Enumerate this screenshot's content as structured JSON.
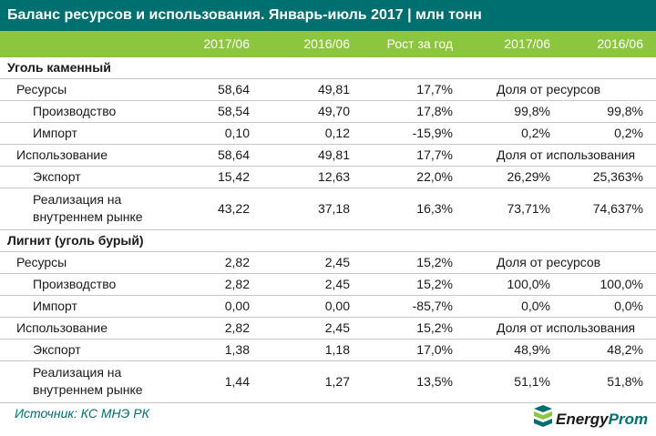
{
  "title": "Баланс ресурсов и использования. Январь-июль 2017 | млн тонн",
  "headers": [
    "2017/06",
    "2016/06",
    "Рост за год",
    "2017/06",
    "2016/06"
  ],
  "rows": [
    {
      "type": "section",
      "label": "Уголь каменный"
    },
    {
      "type": "l1",
      "label": "Ресурсы",
      "v1": "58,64",
      "v2": "49,81",
      "v3": "17,7%",
      "note": "Доля от ресурсов"
    },
    {
      "type": "l2",
      "label": "Производство",
      "v1": "58,54",
      "v2": "49,70",
      "v3": "17,8%",
      "v4": "99,8%",
      "v5": "99,8%"
    },
    {
      "type": "l2",
      "label": "Импорт",
      "v1": "0,10",
      "v2": "0,12",
      "v3": "-15,9%",
      "v4": "0,2%",
      "v5": "0,2%"
    },
    {
      "type": "l1",
      "label": "Использование",
      "v1": "58,64",
      "v2": "49,81",
      "v3": "17,7%",
      "note": "Доля от использования"
    },
    {
      "type": "l2",
      "label": "Экспорт",
      "v1": "15,42",
      "v2": "12,63",
      "v3": "22,0%",
      "v4": "26,29%",
      "v5": "25,363%"
    },
    {
      "type": "l2tall",
      "label1": "Реализация на",
      "label2": "внутреннем рынке",
      "v1": "43,22",
      "v2": "37,18",
      "v3": "16,3%",
      "v4": "73,71%",
      "v5": "74,637%"
    },
    {
      "type": "section",
      "label": "Лигнит (уголь бурый)"
    },
    {
      "type": "l1",
      "label": "Ресурсы",
      "v1": "2,82",
      "v2": "2,45",
      "v3": "15,2%",
      "note": "Доля от ресурсов"
    },
    {
      "type": "l2",
      "label": "Производство",
      "v1": "2,82",
      "v2": "2,45",
      "v3": "15,2%",
      "v4": "100,0%",
      "v5": "100,0%"
    },
    {
      "type": "l2",
      "label": "Импорт",
      "v1": "0,00",
      "v2": "0,00",
      "v3": "-85,7%",
      "v4": "0,0%",
      "v5": "0,0%"
    },
    {
      "type": "l1",
      "label": "Использование",
      "v1": "2,82",
      "v2": "2,45",
      "v3": "15,2%",
      "note": "Доля от использования"
    },
    {
      "type": "l2",
      "label": "Экспорт",
      "v1": "1,38",
      "v2": "1,18",
      "v3": "17,0%",
      "v4": "48,9%",
      "v5": "48,2%"
    },
    {
      "type": "l2tall",
      "label1": "Реализация на",
      "label2": "внутреннем рынке",
      "v1": "1,44",
      "v2": "1,27",
      "v3": "13,5%",
      "v4": "51,1%",
      "v5": "51,8%"
    }
  ],
  "source": "Источник: КС МНЭ РК",
  "logo": {
    "energy": "Energy",
    "prom": "Prom"
  },
  "colors": {
    "title_bg": "#006f6f",
    "header_bg": "#8cc63f",
    "accent": "#006f6f"
  }
}
